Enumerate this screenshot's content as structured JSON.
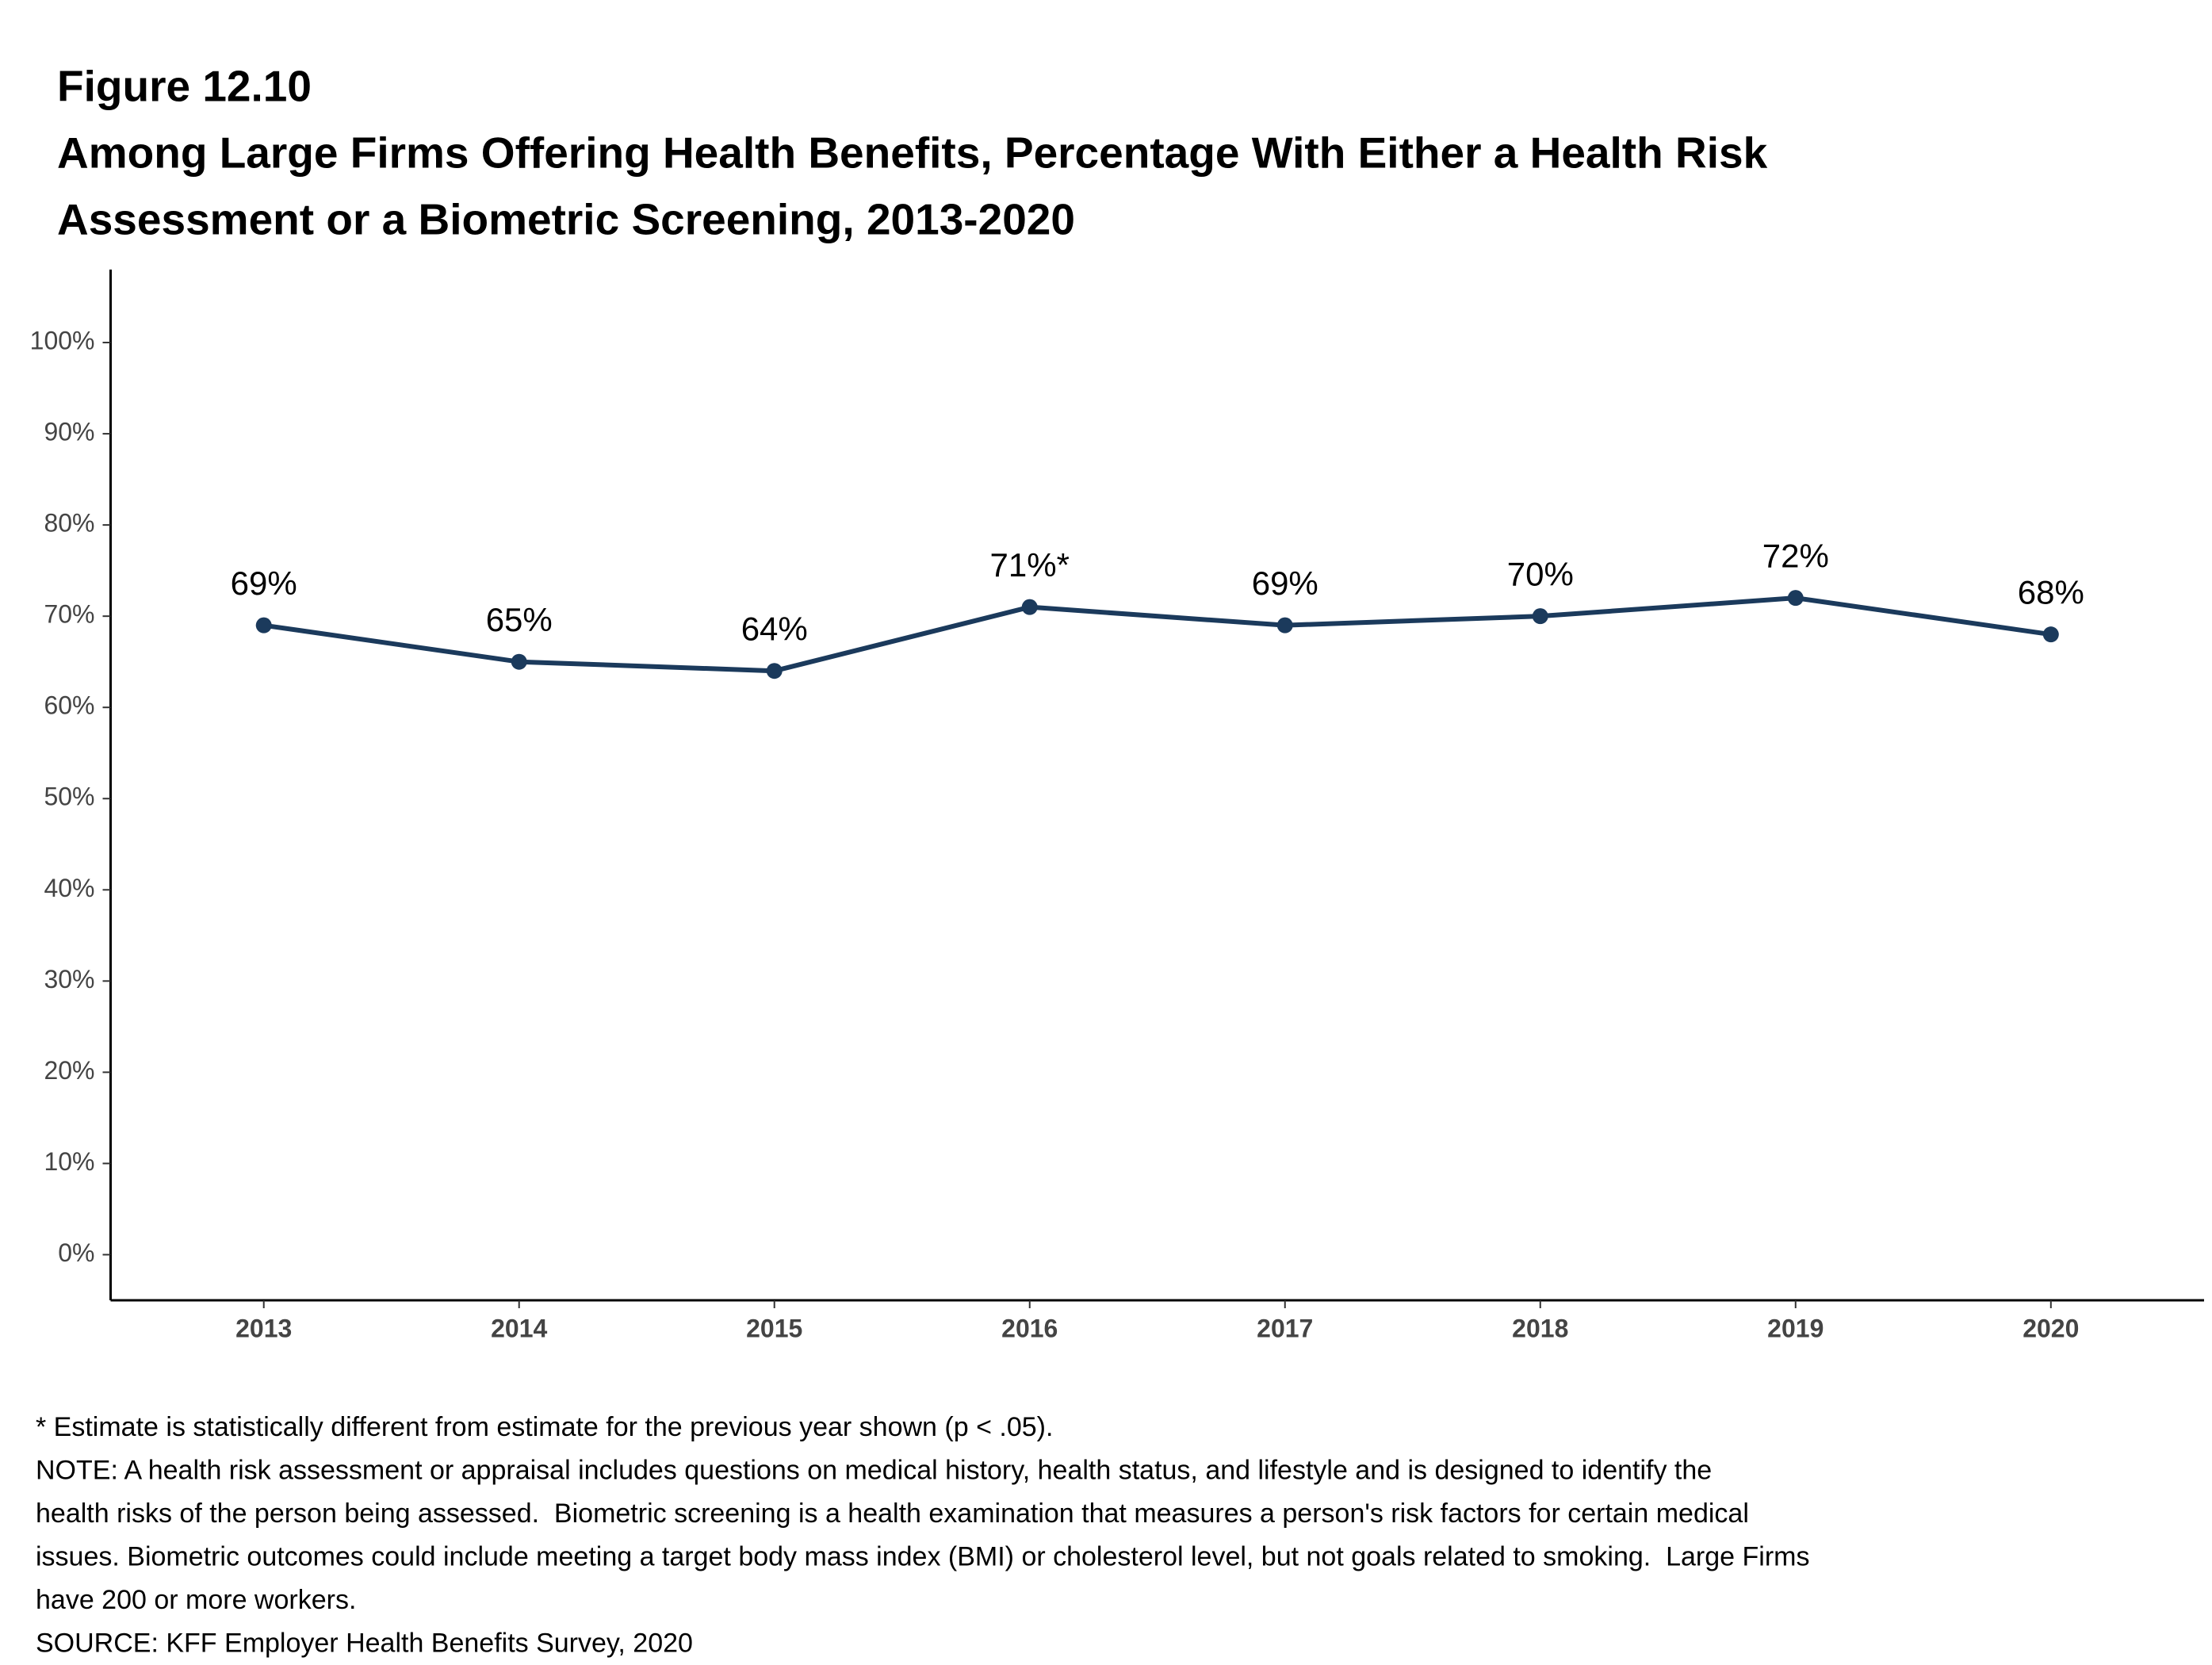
{
  "chart_data": {
    "type": "line",
    "figure_label": "Figure 12.10",
    "title": [
      "Among Large Firms Offering Health Benefits, Percentage With Either a Health Risk",
      "Assessment or a Biometric Screening, 2013-2020"
    ],
    "categories": [
      "2013",
      "2014",
      "2015",
      "2016",
      "2017",
      "2018",
      "2019",
      "2020"
    ],
    "values": [
      69,
      65,
      64,
      71,
      69,
      70,
      72,
      68
    ],
    "value_labels": [
      "69%",
      "65%",
      "64%",
      "71%*",
      "69%",
      "70%",
      "72%",
      "68%"
    ],
    "color": "#1b3a5c",
    "ylim": [
      -5,
      108
    ],
    "yticks": [
      {
        "value": 0,
        "label": "0%"
      },
      {
        "value": 10,
        "label": "10%"
      },
      {
        "value": 20,
        "label": "20%"
      },
      {
        "value": 30,
        "label": "30%"
      },
      {
        "value": 40,
        "label": "40%"
      },
      {
        "value": 50,
        "label": "50%"
      },
      {
        "value": 60,
        "label": "60%"
      },
      {
        "value": 70,
        "label": "70%"
      },
      {
        "value": 80,
        "label": "80%"
      },
      {
        "value": 90,
        "label": "90%"
      },
      {
        "value": 100,
        "label": "100%"
      }
    ],
    "grid": false,
    "notes": [
      "* Estimate is statistically different from estimate for the previous year shown (p < .05).",
      "NOTE: A health risk assessment or appraisal includes questions on medical history, health status, and lifestyle and is designed to identify the",
      "health risks of the person being assessed.  Biometric screening is a health examination that measures a person's risk factors for certain medical",
      "issues. Biometric outcomes could include meeting a target body mass index (BMI) or cholesterol level, but not goals related to smoking.  Large Firms",
      "have 200 or more workers.",
      "SOURCE: KFF Employer Health Benefits Survey, 2020"
    ]
  }
}
